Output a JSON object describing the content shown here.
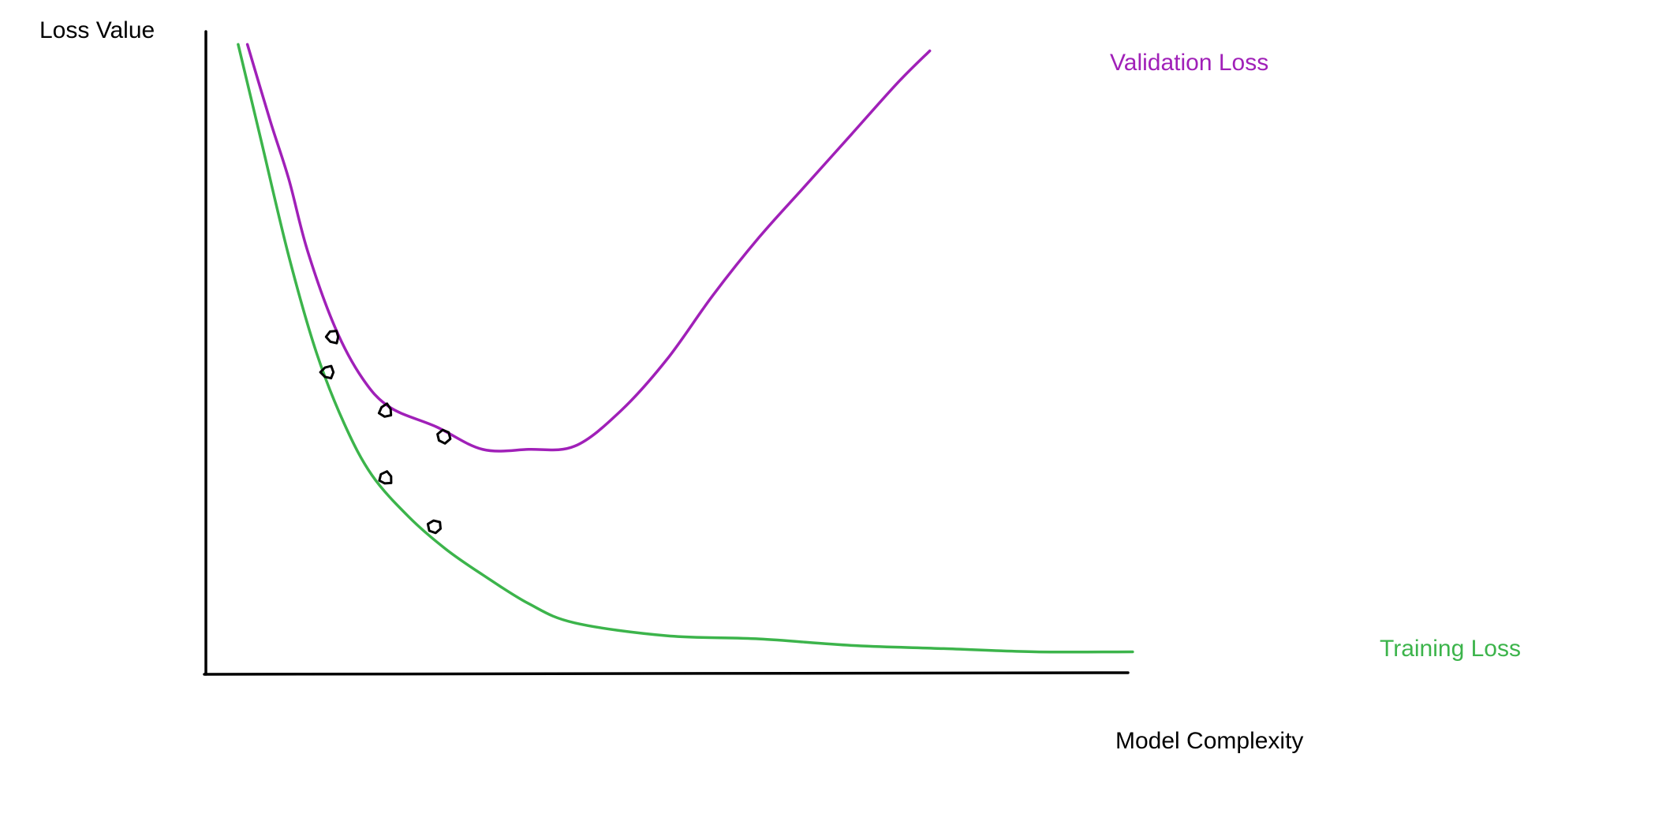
{
  "chart_data": {
    "type": "line",
    "title": "",
    "xlabel": "Model Complexity",
    "ylabel": "Loss Value",
    "xlim": [
      0,
      10
    ],
    "ylim": [
      0,
      10
    ],
    "grid": false,
    "ticks": false,
    "legend": "inline-right",
    "series": [
      {
        "name": "Validation Loss",
        "color": "#a020b8",
        "x": [
          0.45,
          0.7,
          0.9,
          1.1,
          1.4,
          1.7,
          2.0,
          2.5,
          3.0,
          3.5,
          4.0,
          4.5,
          5.0,
          5.5,
          6.0,
          6.5,
          7.0,
          7.5,
          7.85
        ],
        "y": [
          9.8,
          8.6,
          7.7,
          6.6,
          5.4,
          4.6,
          4.15,
          3.85,
          3.5,
          3.5,
          3.55,
          4.1,
          4.9,
          5.9,
          6.8,
          7.6,
          8.4,
          9.2,
          9.7
        ]
      },
      {
        "name": "Training Loss",
        "color": "#3cb44b",
        "x": [
          0.35,
          0.6,
          0.9,
          1.2,
          1.5,
          1.8,
          2.2,
          2.6,
          3.0,
          3.5,
          4.0,
          5.0,
          6.0,
          7.0,
          8.0,
          9.0,
          10.05
        ],
        "y": [
          9.8,
          8.3,
          6.5,
          5.0,
          3.9,
          3.1,
          2.45,
          1.95,
          1.55,
          1.1,
          0.8,
          0.6,
          0.55,
          0.45,
          0.4,
          0.35,
          0.35
        ]
      }
    ],
    "markers": [
      {
        "series": "Validation Loss",
        "x": 1.38,
        "y": 5.25
      },
      {
        "series": "Validation Loss",
        "x": 1.95,
        "y": 4.1
      },
      {
        "series": "Validation Loss",
        "x": 2.58,
        "y": 3.7
      },
      {
        "series": "Training Loss",
        "x": 1.32,
        "y": 4.7
      },
      {
        "series": "Training Loss",
        "x": 1.95,
        "y": 3.05
      },
      {
        "series": "Training Loss",
        "x": 2.48,
        "y": 2.3
      }
    ]
  }
}
